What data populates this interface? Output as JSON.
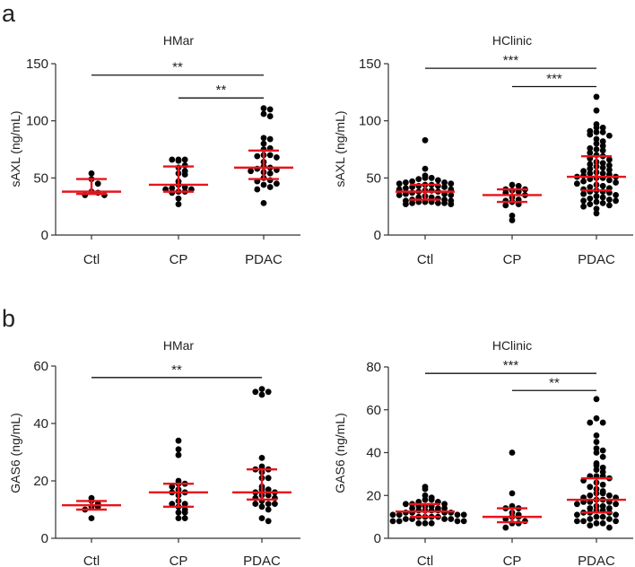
{
  "figure": {
    "panel_labels": [
      "a",
      "b"
    ]
  },
  "chart_data": [
    {
      "type": "scatter",
      "panel": "a",
      "title": "HMar",
      "ylabel": "sAXL (ng/mL)",
      "ylim": [
        0,
        150
      ],
      "yticks": [
        "0",
        "50",
        "100",
        "150"
      ],
      "categories": [
        "Ctl",
        "CP",
        "PDAC"
      ],
      "groups": [
        {
          "name": "Ctl",
          "values": [
            54,
            49,
            45,
            38,
            37,
            35,
            35
          ],
          "median": 38,
          "q1": 36,
          "q3": 49
        },
        {
          "name": "CP",
          "values": [
            66,
            66,
            65,
            66,
            61,
            59,
            56,
            54,
            53,
            47,
            44,
            42,
            41,
            40,
            40,
            38,
            38,
            37,
            32,
            27
          ],
          "median": 44,
          "q1": 38,
          "q3": 60
        },
        {
          "name": "PDAC",
          "values": [
            111,
            110,
            106,
            104,
            85,
            84,
            80,
            76,
            75,
            70,
            70,
            69,
            68,
            64,
            60,
            59,
            58,
            57,
            56,
            55,
            54,
            50,
            48,
            47,
            45,
            44,
            42,
            40,
            28
          ],
          "median": 59,
          "q1": 49,
          "q3": 74
        }
      ],
      "significance": [
        {
          "from": "Ctl",
          "to": "PDAC",
          "y": 140,
          "label": "**"
        },
        {
          "from": "CP",
          "to": "PDAC",
          "y": 120,
          "label": "**"
        }
      ]
    },
    {
      "type": "scatter",
      "panel": "a",
      "title": "HClinic",
      "ylabel": "sAXL (ng/mL)",
      "ylim": [
        0,
        150
      ],
      "yticks": [
        "0",
        "50",
        "100",
        "150"
      ],
      "categories": [
        "Ctl",
        "CP",
        "PDAC"
      ],
      "groups": [
        {
          "name": "Ctl",
          "values": [
            83,
            58,
            52,
            50,
            50,
            49,
            48,
            47,
            46,
            46,
            45,
            45,
            44,
            44,
            43,
            43,
            42,
            42,
            41,
            40,
            40,
            39,
            39,
            38,
            38,
            37,
            36,
            36,
            35,
            35,
            34,
            33,
            33,
            32,
            31,
            31,
            30,
            30,
            29,
            29,
            29,
            28,
            28,
            28,
            27,
            27
          ],
          "median": 38,
          "q1": 31,
          "q3": 44
        },
        {
          "name": "CP",
          "values": [
            44,
            43,
            40,
            40,
            39,
            38,
            37,
            35,
            33,
            31,
            30,
            29,
            27,
            26,
            17,
            13
          ],
          "median": 35,
          "q1": 29,
          "q3": 40
        },
        {
          "name": "PDAC",
          "values": [
            121,
            109,
            97,
            94,
            94,
            91,
            90,
            90,
            88,
            87,
            84,
            82,
            80,
            78,
            76,
            75,
            74,
            72,
            70,
            69,
            67,
            66,
            64,
            63,
            62,
            61,
            60,
            59,
            58,
            57,
            56,
            55,
            54,
            54,
            53,
            52,
            51,
            51,
            50,
            50,
            49,
            48,
            47,
            46,
            45,
            44,
            43,
            42,
            41,
            40,
            39,
            38,
            38,
            37,
            36,
            35,
            34,
            33,
            32,
            31,
            30,
            30,
            29,
            28,
            27,
            26,
            25,
            23,
            19
          ],
          "median": 51,
          "q1": 39,
          "q3": 69
        }
      ],
      "significance": [
        {
          "from": "Ctl",
          "to": "PDAC",
          "y": 146,
          "label": "***"
        },
        {
          "from": "CP",
          "to": "PDAC",
          "y": 130,
          "label": "***"
        }
      ]
    },
    {
      "type": "scatter",
      "panel": "b",
      "title": "HMar",
      "ylabel": "GAS6 (ng/mL)",
      "ylim": [
        0,
        60
      ],
      "yticks": [
        "0",
        "20",
        "40",
        "60"
      ],
      "categories": [
        "Ctl",
        "CP",
        "PDAC"
      ],
      "groups": [
        {
          "name": "Ctl",
          "values": [
            14,
            13,
            12,
            11,
            11,
            10,
            7
          ],
          "median": 11.5,
          "q1": 10,
          "q3": 13
        },
        {
          "name": "CP",
          "values": [
            34,
            31,
            29,
            20,
            19,
            19,
            18,
            17,
            16,
            16,
            15,
            13,
            12,
            12,
            11,
            10,
            9,
            9,
            7,
            7
          ],
          "median": 16,
          "q1": 11,
          "q3": 19
        },
        {
          "name": "PDAC",
          "values": [
            52,
            51,
            51,
            50,
            28,
            25,
            24,
            24,
            23,
            21,
            21,
            18,
            17,
            17,
            16,
            16,
            15,
            15,
            14,
            14,
            13,
            12,
            12,
            12,
            11,
            10,
            7,
            6
          ],
          "median": 16,
          "q1": 13.5,
          "q3": 24
        }
      ],
      "significance": [
        {
          "from": "Ctl",
          "to": "PDAC",
          "y": 56,
          "label": "**"
        }
      ]
    },
    {
      "type": "scatter",
      "panel": "b",
      "title": "HClinic",
      "ylabel": "GAS6 (ng/mL)",
      "ylim": [
        0,
        80
      ],
      "yticks": [
        "0",
        "20",
        "40",
        "60",
        "80"
      ],
      "categories": [
        "Ctl",
        "CP",
        "PDAC"
      ],
      "groups": [
        {
          "name": "Ctl",
          "values": [
            24,
            23,
            20,
            19,
            18,
            18,
            17,
            17,
            16,
            16,
            16,
            15,
            15,
            15,
            14,
            14,
            14,
            13,
            13,
            13,
            13,
            12,
            12,
            12,
            12,
            11,
            11,
            11,
            11,
            10,
            10,
            10,
            10,
            9,
            9,
            9,
            9,
            8,
            8,
            8,
            8,
            7,
            7,
            7
          ],
          "median": 12.5,
          "q1": 10,
          "q3": 16
        },
        {
          "name": "CP",
          "values": [
            40,
            21,
            15,
            14,
            14,
            12,
            11,
            10,
            10,
            9,
            8,
            7,
            7,
            5
          ],
          "median": 10,
          "q1": 7.5,
          "q3": 14
        },
        {
          "name": "PDAC",
          "values": [
            65,
            56,
            54,
            54,
            48,
            45,
            42,
            41,
            40,
            38,
            35,
            34,
            33,
            32,
            31,
            29,
            29,
            29,
            28,
            27,
            26,
            25,
            24,
            23,
            22,
            21,
            21,
            20,
            20,
            19,
            19,
            18,
            18,
            17,
            17,
            17,
            16,
            16,
            15,
            15,
            14,
            14,
            13,
            13,
            12,
            12,
            12,
            11,
            11,
            10,
            10,
            9,
            9,
            8,
            8,
            8,
            7,
            7,
            6,
            5
          ],
          "median": 18,
          "q1": 12,
          "q3": 28
        }
      ],
      "significance": [
        {
          "from": "Ctl",
          "to": "PDAC",
          "y": 77,
          "label": "***"
        },
        {
          "from": "CP",
          "to": "PDAC",
          "y": 69,
          "label": "**"
        }
      ]
    }
  ],
  "colors": {
    "dots": "#000000",
    "error_bars": "#e8141c",
    "axis": "#333333"
  }
}
